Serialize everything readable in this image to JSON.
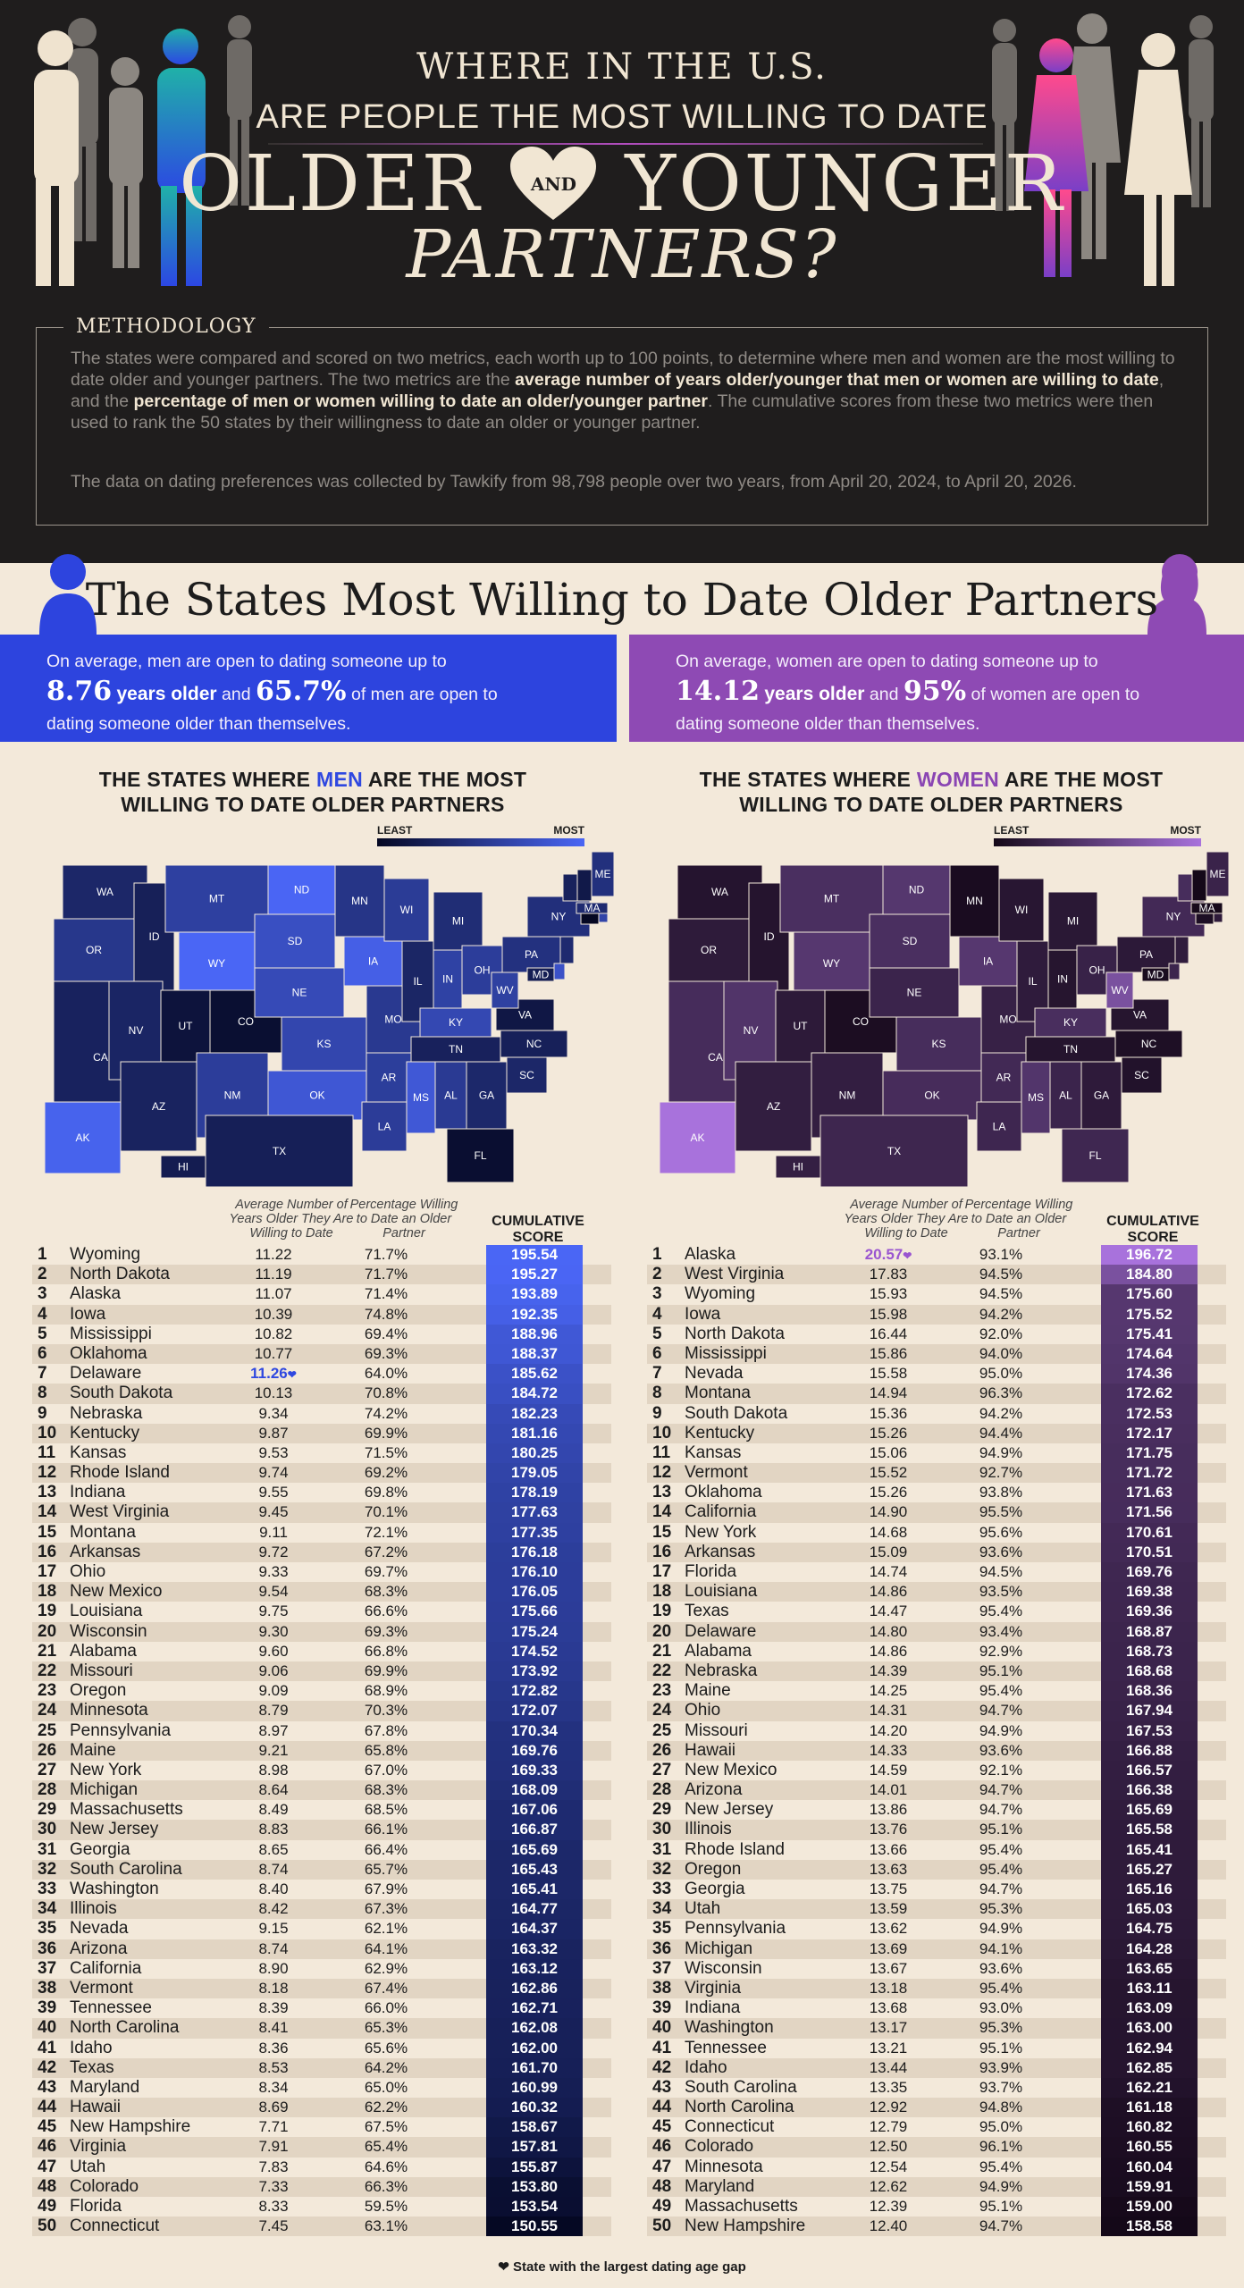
{
  "header": {
    "line1": "WHERE IN THE U.S.",
    "line2": "ARE PEOPLE THE MOST WILLING TO DATE",
    "word_older": "OLDER",
    "word_and": "AND",
    "word_younger": "YOUNGER",
    "line4": "PARTNERS?"
  },
  "methodology": {
    "title": "METHODOLOGY",
    "p1_a": "The states were compared and scored on two metrics, each worth up to 100 points, to determine where men and women are the most willing to date older and younger partners. The two metrics are the ",
    "p1_b": "average number of years older/younger that men or women are willing to date",
    "p1_c": ", and the ",
    "p1_d": "percentage of men or women willing to date an older/younger partner",
    "p1_e": ". The cumulative scores from these two metrics were then used to rank the 50 states by their willingness to date an older or younger partner.",
    "p2": "The data on dating preferences was collected by Tawkify from 98,798 people over two years, from April 20, 2024, to April 20, 2026."
  },
  "section_title": "The States Most Willing to Date Older Partners",
  "men_banner": {
    "t1": "On average, men are open to dating someone up to",
    "years": "8.76",
    "years_label": "years older",
    "and": "and",
    "pct": "65.7%",
    "t2": "of men are open to",
    "t3": "dating someone older than themselves."
  },
  "women_banner": {
    "t1": "On average, women are open to dating someone up to",
    "years": "14.12",
    "years_label": "years older",
    "and": "and",
    "pct": "95%",
    "t2": "of women are open to",
    "t3": "dating someone older than themselves."
  },
  "legend": {
    "least": "LEAST",
    "most": "MOST"
  },
  "columns": {
    "years": "Average Number of Years Older They Are Willing to Date",
    "pct": "Percentage Willing to Date an Older Partner",
    "score_1": "CUMULATIVE",
    "score_2": "SCORE"
  },
  "footnote": "State with the largest dating age gap",
  "colors": {
    "header_bg": "#1f1d1d",
    "cream": "#f3e9da",
    "men_accent": "#2d44de",
    "women_accent": "#8e4ab4",
    "men_most": "#4a66f5",
    "men_least": "#050823",
    "women_most": "#a872dc",
    "women_least": "#140818"
  },
  "chart_data": [
    {
      "type": "table",
      "title_a": "THE STATES WHERE ",
      "title_hl": "MEN",
      "title_b": " ARE THE MOST",
      "title_c": "WILLING TO DATE OLDER PARTNERS",
      "highlight_rank": 7,
      "highlight_value": "11.26",
      "columns": [
        "Rank",
        "State",
        "Average Number of Years Older They Are Willing to Date",
        "Percentage Willing to Date an Older Partner",
        "CUMULATIVE SCORE"
      ],
      "rows": [
        [
          1,
          "Wyoming",
          "11.22",
          "71.7%",
          "195.54"
        ],
        [
          2,
          "North Dakota",
          "11.19",
          "71.7%",
          "195.27"
        ],
        [
          3,
          "Alaska",
          "11.07",
          "71.4%",
          "193.89"
        ],
        [
          4,
          "Iowa",
          "10.39",
          "74.8%",
          "192.35"
        ],
        [
          5,
          "Mississippi",
          "10.82",
          "69.4%",
          "188.96"
        ],
        [
          6,
          "Oklahoma",
          "10.77",
          "69.3%",
          "188.37"
        ],
        [
          7,
          "Delaware",
          "11.26",
          "64.0%",
          "185.62"
        ],
        [
          8,
          "South Dakota",
          "10.13",
          "70.8%",
          "184.72"
        ],
        [
          9,
          "Nebraska",
          "9.34",
          "74.2%",
          "182.23"
        ],
        [
          10,
          "Kentucky",
          "9.87",
          "69.9%",
          "181.16"
        ],
        [
          11,
          "Kansas",
          "9.53",
          "71.5%",
          "180.25"
        ],
        [
          12,
          "Rhode Island",
          "9.74",
          "69.2%",
          "179.05"
        ],
        [
          13,
          "Indiana",
          "9.55",
          "69.8%",
          "178.19"
        ],
        [
          14,
          "West Virginia",
          "9.45",
          "70.1%",
          "177.63"
        ],
        [
          15,
          "Montana",
          "9.11",
          "72.1%",
          "177.35"
        ],
        [
          16,
          "Arkansas",
          "9.72",
          "67.2%",
          "176.18"
        ],
        [
          17,
          "Ohio",
          "9.33",
          "69.7%",
          "176.10"
        ],
        [
          18,
          "New Mexico",
          "9.54",
          "68.3%",
          "176.05"
        ],
        [
          19,
          "Louisiana",
          "9.75",
          "66.6%",
          "175.66"
        ],
        [
          20,
          "Wisconsin",
          "9.30",
          "69.3%",
          "175.24"
        ],
        [
          21,
          "Alabama",
          "9.60",
          "66.8%",
          "174.52"
        ],
        [
          22,
          "Missouri",
          "9.06",
          "69.9%",
          "173.92"
        ],
        [
          23,
          "Oregon",
          "9.09",
          "68.9%",
          "172.82"
        ],
        [
          24,
          "Minnesota",
          "8.79",
          "70.3%",
          "172.07"
        ],
        [
          25,
          "Pennsylvania",
          "8.97",
          "67.8%",
          "170.34"
        ],
        [
          26,
          "Maine",
          "9.21",
          "65.8%",
          "169.76"
        ],
        [
          27,
          "New York",
          "8.98",
          "67.0%",
          "169.33"
        ],
        [
          28,
          "Michigan",
          "8.64",
          "68.3%",
          "168.09"
        ],
        [
          29,
          "Massachusetts",
          "8.49",
          "68.5%",
          "167.06"
        ],
        [
          30,
          "New Jersey",
          "8.83",
          "66.1%",
          "166.87"
        ],
        [
          31,
          "Georgia",
          "8.65",
          "66.4%",
          "165.69"
        ],
        [
          32,
          "South Carolina",
          "8.74",
          "65.7%",
          "165.43"
        ],
        [
          33,
          "Washington",
          "8.40",
          "67.9%",
          "165.41"
        ],
        [
          34,
          "Illinois",
          "8.42",
          "67.3%",
          "164.77"
        ],
        [
          35,
          "Nevada",
          "9.15",
          "62.1%",
          "164.37"
        ],
        [
          36,
          "Arizona",
          "8.74",
          "64.1%",
          "163.32"
        ],
        [
          37,
          "California",
          "8.90",
          "62.9%",
          "163.12"
        ],
        [
          38,
          "Vermont",
          "8.18",
          "67.4%",
          "162.86"
        ],
        [
          39,
          "Tennessee",
          "8.39",
          "66.0%",
          "162.71"
        ],
        [
          40,
          "North Carolina",
          "8.41",
          "65.3%",
          "162.08"
        ],
        [
          41,
          "Idaho",
          "8.36",
          "65.6%",
          "162.00"
        ],
        [
          42,
          "Texas",
          "8.53",
          "64.2%",
          "161.70"
        ],
        [
          43,
          "Maryland",
          "8.34",
          "65.0%",
          "160.99"
        ],
        [
          44,
          "Hawaii",
          "8.69",
          "62.2%",
          "160.32"
        ],
        [
          45,
          "New Hampshire",
          "7.71",
          "67.5%",
          "158.67"
        ],
        [
          46,
          "Virginia",
          "7.91",
          "65.4%",
          "157.81"
        ],
        [
          47,
          "Utah",
          "7.83",
          "64.6%",
          "155.87"
        ],
        [
          48,
          "Colorado",
          "7.33",
          "66.3%",
          "153.80"
        ],
        [
          49,
          "Florida",
          "8.33",
          "59.5%",
          "153.54"
        ],
        [
          50,
          "Connecticut",
          "7.45",
          "63.1%",
          "150.55"
        ]
      ]
    },
    {
      "type": "table",
      "title_a": "THE STATES WHERE ",
      "title_hl": "WOMEN",
      "title_b": " ARE THE MOST",
      "title_c": "WILLING TO DATE OLDER PARTNERS",
      "highlight_rank": 1,
      "highlight_value": "20.57",
      "columns": [
        "Rank",
        "State",
        "Average Number of Years Older They Are Willing to Date",
        "Percentage Willing to Date an Older Partner",
        "CUMULATIVE SCORE"
      ],
      "rows": [
        [
          1,
          "Alaska",
          "20.57",
          "93.1%",
          "196.72"
        ],
        [
          2,
          "West Virginia",
          "17.83",
          "94.5%",
          "184.80"
        ],
        [
          3,
          "Wyoming",
          "15.93",
          "94.5%",
          "175.60"
        ],
        [
          4,
          "Iowa",
          "15.98",
          "94.2%",
          "175.52"
        ],
        [
          5,
          "North Dakota",
          "16.44",
          "92.0%",
          "175.41"
        ],
        [
          6,
          "Mississippi",
          "15.86",
          "94.0%",
          "174.64"
        ],
        [
          7,
          "Nevada",
          "15.58",
          "95.0%",
          "174.36"
        ],
        [
          8,
          "Montana",
          "14.94",
          "96.3%",
          "172.62"
        ],
        [
          9,
          "South Dakota",
          "15.36",
          "94.2%",
          "172.53"
        ],
        [
          10,
          "Kentucky",
          "15.26",
          "94.4%",
          "172.17"
        ],
        [
          11,
          "Kansas",
          "15.06",
          "94.9%",
          "171.75"
        ],
        [
          12,
          "Vermont",
          "15.52",
          "92.7%",
          "171.72"
        ],
        [
          13,
          "Oklahoma",
          "15.26",
          "93.8%",
          "171.63"
        ],
        [
          14,
          "California",
          "14.90",
          "95.5%",
          "171.56"
        ],
        [
          15,
          "New York",
          "14.68",
          "95.6%",
          "170.61"
        ],
        [
          16,
          "Arkansas",
          "15.09",
          "93.6%",
          "170.51"
        ],
        [
          17,
          "Florida",
          "14.74",
          "94.5%",
          "169.76"
        ],
        [
          18,
          "Louisiana",
          "14.86",
          "93.5%",
          "169.38"
        ],
        [
          19,
          "Texas",
          "14.47",
          "95.4%",
          "169.36"
        ],
        [
          20,
          "Delaware",
          "14.80",
          "93.4%",
          "168.87"
        ],
        [
          21,
          "Alabama",
          "14.86",
          "92.9%",
          "168.73"
        ],
        [
          22,
          "Nebraska",
          "14.39",
          "95.1%",
          "168.68"
        ],
        [
          23,
          "Maine",
          "14.25",
          "95.4%",
          "168.36"
        ],
        [
          24,
          "Ohio",
          "14.31",
          "94.7%",
          "167.94"
        ],
        [
          25,
          "Missouri",
          "14.20",
          "94.9%",
          "167.53"
        ],
        [
          26,
          "Hawaii",
          "14.33",
          "93.6%",
          "166.88"
        ],
        [
          27,
          "New Mexico",
          "14.59",
          "92.1%",
          "166.57"
        ],
        [
          28,
          "Arizona",
          "14.01",
          "94.7%",
          "166.38"
        ],
        [
          29,
          "New Jersey",
          "13.86",
          "94.7%",
          "165.69"
        ],
        [
          30,
          "Illinois",
          "13.76",
          "95.1%",
          "165.58"
        ],
        [
          31,
          "Rhode Island",
          "13.66",
          "95.4%",
          "165.41"
        ],
        [
          32,
          "Oregon",
          "13.63",
          "95.4%",
          "165.27"
        ],
        [
          33,
          "Georgia",
          "13.75",
          "94.7%",
          "165.16"
        ],
        [
          34,
          "Utah",
          "13.59",
          "95.3%",
          "165.03"
        ],
        [
          35,
          "Pennsylvania",
          "13.62",
          "94.9%",
          "164.75"
        ],
        [
          36,
          "Michigan",
          "13.69",
          "94.1%",
          "164.28"
        ],
        [
          37,
          "Wisconsin",
          "13.67",
          "93.6%",
          "163.65"
        ],
        [
          38,
          "Virginia",
          "13.18",
          "95.4%",
          "163.11"
        ],
        [
          39,
          "Indiana",
          "13.68",
          "93.0%",
          "163.09"
        ],
        [
          40,
          "Washington",
          "13.17",
          "95.3%",
          "163.00"
        ],
        [
          41,
          "Tennessee",
          "13.21",
          "95.1%",
          "162.94"
        ],
        [
          42,
          "Idaho",
          "13.44",
          "93.9%",
          "162.85"
        ],
        [
          43,
          "South Carolina",
          "13.35",
          "93.7%",
          "162.21"
        ],
        [
          44,
          "North Carolina",
          "12.92",
          "94.8%",
          "161.18"
        ],
        [
          45,
          "Connecticut",
          "12.79",
          "95.0%",
          "160.82"
        ],
        [
          46,
          "Colorado",
          "12.50",
          "96.1%",
          "160.55"
        ],
        [
          47,
          "Minnesota",
          "12.54",
          "95.4%",
          "160.04"
        ],
        [
          48,
          "Maryland",
          "12.62",
          "94.9%",
          "159.91"
        ],
        [
          49,
          "Massachusetts",
          "12.39",
          "95.1%",
          "159.00"
        ],
        [
          50,
          "New Hampshire",
          "12.40",
          "94.7%",
          "158.58"
        ]
      ]
    }
  ]
}
